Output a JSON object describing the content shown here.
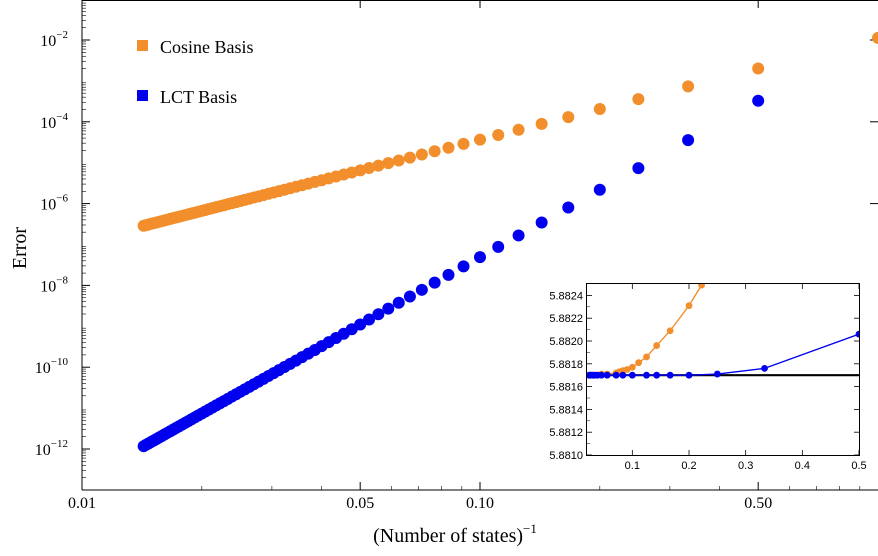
{
  "chart_data": [
    {
      "type": "scatter",
      "xlabel": "(Number of states)",
      "xlabel_superscript": "−1",
      "ylabel": "Error",
      "xscale": "log",
      "yscale": "log",
      "xlim": [
        0.01,
        1.0
      ],
      "ylim": [
        1e-13,
        0.05
      ],
      "x_ticks": [
        {
          "value": 0.01,
          "label": "0.01"
        },
        {
          "value": 0.05,
          "label": "0.05"
        },
        {
          "value": 0.1,
          "label": "0.10"
        },
        {
          "value": 0.5,
          "label": "0.50"
        }
      ],
      "y_ticks": [
        {
          "value": 1e-12,
          "base": "10",
          "exp": "−12"
        },
        {
          "value": 1e-10,
          "base": "10",
          "exp": "−10"
        },
        {
          "value": 1e-08,
          "base": "10",
          "exp": "−8"
        },
        {
          "value": 1e-06,
          "base": "10",
          "exp": "−6"
        },
        {
          "value": 0.0001,
          "base": "10",
          "exp": "−4"
        },
        {
          "value": 0.01,
          "base": "10",
          "exp": "−2"
        }
      ],
      "legend_position": "top-left",
      "series": [
        {
          "name": "Cosine Basis",
          "color": "#f28e2b",
          "model": {
            "n_min": 1,
            "n_max": 70,
            "a": 0.0113,
            "p": 2.49
          }
        },
        {
          "name": "LCT Basis",
          "color": "#0000ee",
          "model": {
            "n_min": 2,
            "n_max": 70,
            "a": 0.0145,
            "p": 5.47
          }
        }
      ]
    },
    {
      "type": "line",
      "inset": true,
      "xlim": [
        0.02,
        0.5
      ],
      "ylim": [
        5.881,
        5.8825
      ],
      "x_ticks": [
        {
          "value": 0.1,
          "label": "0.1"
        },
        {
          "value": 0.2,
          "label": "0.2"
        },
        {
          "value": 0.3,
          "label": "0.3"
        },
        {
          "value": 0.4,
          "label": "0.4"
        },
        {
          "value": 0.5,
          "label": "0.5"
        }
      ],
      "y_ticks": [
        {
          "value": 5.881,
          "label": "5.8810"
        },
        {
          "value": 5.8812,
          "label": "5.8812"
        },
        {
          "value": 5.8814,
          "label": "5.8814"
        },
        {
          "value": 5.8816,
          "label": "5.8816"
        },
        {
          "value": 5.8818,
          "label": "5.8818"
        },
        {
          "value": 5.882,
          "label": "5.8820"
        },
        {
          "value": 5.8822,
          "label": "5.8822"
        },
        {
          "value": 5.8824,
          "label": "5.8824"
        }
      ],
      "reference_value": 5.8817,
      "series": [
        {
          "name": "",
          "color": "#f28e2b",
          "x": [
            0.0238,
            0.0263,
            0.0294,
            0.0333,
            0.0385,
            0.0455,
            0.0556,
            0.0714,
            0.0769,
            0.0833,
            0.0909,
            0.1,
            0.1111,
            0.125,
            0.1429,
            0.1667,
            0.2,
            0.2222
          ],
          "y": [
            5.8817,
            5.8817,
            5.8817,
            5.8817,
            5.8817,
            5.88171,
            5.88171,
            5.88172,
            5.88173,
            5.88174,
            5.88175,
            5.88177,
            5.88181,
            5.88186,
            5.88196,
            5.88209,
            5.88231,
            5.88249
          ]
        },
        {
          "name": "",
          "color": "#0000ee",
          "x": [
            0.0238,
            0.0263,
            0.0294,
            0.0333,
            0.0385,
            0.0455,
            0.0556,
            0.0714,
            0.0833,
            0.1,
            0.125,
            0.1429,
            0.1667,
            0.2,
            0.25,
            0.3333,
            0.5
          ],
          "y": [
            5.8817,
            5.8817,
            5.8817,
            5.8817,
            5.8817,
            5.8817,
            5.8817,
            5.8817,
            5.8817,
            5.8817,
            5.8817,
            5.8817,
            5.8817,
            5.8817,
            5.88171,
            5.88176,
            5.88206
          ]
        }
      ]
    }
  ]
}
